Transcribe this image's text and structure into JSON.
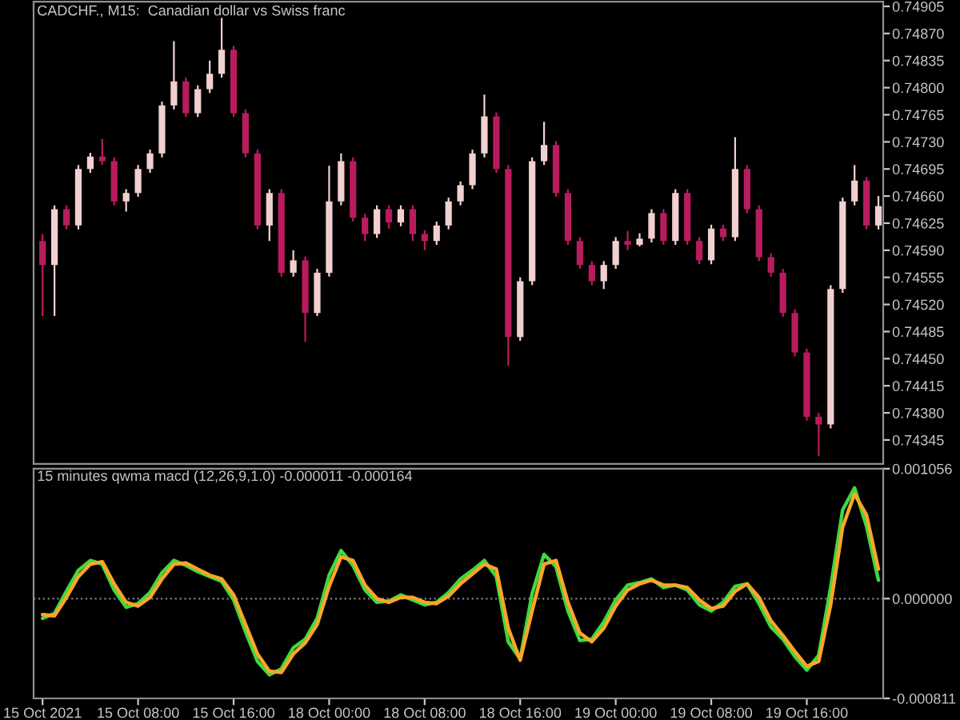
{
  "chart_data": [
    {
      "type": "candlestick",
      "title": "CADCHF., M15:  Canadian dollar vs Swiss franc",
      "categories": [
        null,
        null,
        null,
        null,
        null,
        null,
        null,
        null,
        null,
        null,
        null,
        null,
        null,
        null,
        null,
        null,
        null,
        null,
        null,
        null,
        null,
        null,
        null,
        null,
        null,
        null,
        null,
        null,
        null,
        null,
        null,
        null,
        null,
        null,
        null,
        null,
        null,
        null,
        null,
        null,
        null,
        null,
        null,
        null,
        null,
        null,
        null,
        null,
        null,
        null,
        null,
        null,
        null,
        null,
        null,
        null,
        null,
        null,
        null,
        null,
        null,
        null,
        null,
        null,
        null,
        null,
        null,
        null,
        null,
        null,
        null
      ],
      "ohlc": [
        [
          0.74602,
          0.74611,
          0.74505,
          0.74571
        ],
        [
          0.74571,
          0.74648,
          0.74505,
          0.74643
        ],
        [
          0.74643,
          0.74648,
          0.74617,
          0.74622
        ],
        [
          0.74622,
          0.747,
          0.74617,
          0.74695
        ],
        [
          0.74695,
          0.74716,
          0.7469,
          0.74711
        ],
        [
          0.74711,
          0.74734,
          0.747,
          0.74705
        ],
        [
          0.74705,
          0.7471,
          0.74648,
          0.74653
        ],
        [
          0.74653,
          0.74669,
          0.7464,
          0.74664
        ],
        [
          0.74664,
          0.747,
          0.74659,
          0.74695
        ],
        [
          0.74695,
          0.7472,
          0.7469,
          0.74715
        ],
        [
          0.74715,
          0.74782,
          0.7471,
          0.74777
        ],
        [
          0.74777,
          0.7486,
          0.74772,
          0.74808
        ],
        [
          0.74808,
          0.74813,
          0.74762,
          0.74767
        ],
        [
          0.74767,
          0.74803,
          0.74762,
          0.74798
        ],
        [
          0.74798,
          0.74835,
          0.74793,
          0.74818
        ],
        [
          0.74818,
          0.7489,
          0.74813,
          0.74849
        ],
        [
          0.74849,
          0.74854,
          0.74762,
          0.74767
        ],
        [
          0.74767,
          0.74772,
          0.7471,
          0.74715
        ],
        [
          0.74715,
          0.7472,
          0.74617,
          0.74622
        ],
        [
          0.74622,
          0.74669,
          0.74602,
          0.74664
        ],
        [
          0.74664,
          0.74669,
          0.74556,
          0.74561
        ],
        [
          0.74561,
          0.7459,
          0.74556,
          0.74577
        ],
        [
          0.74577,
          0.74582,
          0.74472,
          0.74509
        ],
        [
          0.74509,
          0.74566,
          0.74505,
          0.74561
        ],
        [
          0.74561,
          0.74699,
          0.74556,
          0.74653
        ],
        [
          0.74653,
          0.74715,
          0.74648,
          0.74705
        ],
        [
          0.74705,
          0.7471,
          0.74627,
          0.74632
        ],
        [
          0.74632,
          0.74637,
          0.74602,
          0.74611
        ],
        [
          0.74611,
          0.74648,
          0.74606,
          0.74643
        ],
        [
          0.74643,
          0.74648,
          0.74618,
          0.74626
        ],
        [
          0.74626,
          0.74648,
          0.74621,
          0.74643
        ],
        [
          0.74643,
          0.74648,
          0.74602,
          0.74611
        ],
        [
          0.74611,
          0.74616,
          0.7459,
          0.74602
        ],
        [
          0.74602,
          0.74627,
          0.74597,
          0.74622
        ],
        [
          0.74622,
          0.74658,
          0.74617,
          0.74653
        ],
        [
          0.74653,
          0.74679,
          0.74648,
          0.74674
        ],
        [
          0.74674,
          0.7472,
          0.74669,
          0.74715
        ],
        [
          0.74715,
          0.74791,
          0.7471,
          0.74763
        ],
        [
          0.74763,
          0.74768,
          0.7469,
          0.74695
        ],
        [
          0.74695,
          0.747,
          0.74441,
          0.74478
        ],
        [
          0.74478,
          0.74555,
          0.74473,
          0.7455
        ],
        [
          0.7455,
          0.7471,
          0.74545,
          0.74705
        ],
        [
          0.74705,
          0.74756,
          0.747,
          0.74726
        ],
        [
          0.74726,
          0.74731,
          0.74659,
          0.74664
        ],
        [
          0.74664,
          0.74669,
          0.74597,
          0.74602
        ],
        [
          0.74602,
          0.74607,
          0.74566,
          0.74571
        ],
        [
          0.74571,
          0.74576,
          0.74545,
          0.7455
        ],
        [
          0.7455,
          0.74576,
          0.7454,
          0.74571
        ],
        [
          0.74571,
          0.74607,
          0.74566,
          0.74602
        ],
        [
          0.74602,
          0.74615,
          0.7459,
          0.74597
        ],
        [
          0.74597,
          0.74612,
          0.74595,
          0.74605
        ],
        [
          0.74605,
          0.74643,
          0.746,
          0.74638
        ],
        [
          0.74638,
          0.74643,
          0.74597,
          0.74602
        ],
        [
          0.74602,
          0.74669,
          0.74597,
          0.74664
        ],
        [
          0.74664,
          0.74669,
          0.74597,
          0.74602
        ],
        [
          0.74602,
          0.74607,
          0.74572,
          0.74577
        ],
        [
          0.74577,
          0.74623,
          0.74572,
          0.74618
        ],
        [
          0.74618,
          0.74623,
          0.74602,
          0.74607
        ],
        [
          0.74607,
          0.74736,
          0.74602,
          0.74695
        ],
        [
          0.74695,
          0.747,
          0.74638,
          0.74643
        ],
        [
          0.74643,
          0.74648,
          0.74576,
          0.74581
        ],
        [
          0.74581,
          0.74586,
          0.74556,
          0.74561
        ],
        [
          0.74561,
          0.74566,
          0.74504,
          0.74509
        ],
        [
          0.74509,
          0.74514,
          0.74453,
          0.74458
        ],
        [
          0.74458,
          0.74463,
          0.7437,
          0.74375
        ],
        [
          0.74375,
          0.7438,
          0.74324,
          0.74365
        ],
        [
          0.74365,
          0.74545,
          0.7436,
          0.7454
        ],
        [
          0.7454,
          0.74658,
          0.74535,
          0.74653
        ],
        [
          0.74653,
          0.747,
          0.74648,
          0.7468
        ],
        [
          0.7468,
          0.74685,
          0.74617,
          0.74622
        ],
        [
          0.74622,
          0.7466,
          0.74617,
          0.74647
        ]
      ],
      "ylim": [
        0.74314,
        0.74911
      ],
      "yticks": [
        {
          "value": 0.74905,
          "label": "0.74905"
        },
        {
          "value": 0.7487,
          "label": "0.74870"
        },
        {
          "value": 0.74835,
          "label": "0.74835"
        },
        {
          "value": 0.748,
          "label": "0.74800"
        },
        {
          "value": 0.74765,
          "label": "0.74765"
        },
        {
          "value": 0.7473,
          "label": "0.74730"
        },
        {
          "value": 0.74695,
          "label": "0.74695"
        },
        {
          "value": 0.7466,
          "label": "0.74660"
        },
        {
          "value": 0.74625,
          "label": "0.74625"
        },
        {
          "value": 0.7459,
          "label": "0.74590"
        },
        {
          "value": 0.74555,
          "label": "0.74555"
        },
        {
          "value": 0.7452,
          "label": "0.74520"
        },
        {
          "value": 0.74485,
          "label": "0.74485"
        },
        {
          "value": 0.7445,
          "label": "0.74450"
        },
        {
          "value": 0.74415,
          "label": "0.74415"
        },
        {
          "value": 0.7438,
          "label": "0.74380"
        },
        {
          "value": 0.74345,
          "label": "0.74345"
        }
      ],
      "tick_labels": "y",
      "grid": false,
      "legend": false
    },
    {
      "type": "line",
      "title": "15 minutes qwma macd (12,26,9,1.0) -0.000011 -0.000164",
      "categories": [
        "15 Oct 2021",
        null,
        null,
        null,
        null,
        null,
        null,
        null,
        "15 Oct 08:00",
        null,
        null,
        null,
        null,
        null,
        null,
        null,
        "15 Oct 16:00",
        null,
        null,
        null,
        null,
        null,
        null,
        null,
        "18 Oct 00:00",
        null,
        null,
        null,
        null,
        null,
        null,
        null,
        "18 Oct 08:00",
        null,
        null,
        null,
        null,
        null,
        null,
        null,
        "18 Oct 16:00",
        null,
        null,
        null,
        null,
        null,
        null,
        null,
        "19 Oct 00:00",
        null,
        null,
        null,
        null,
        null,
        null,
        null,
        "19 Oct 08:00",
        null,
        null,
        null,
        null,
        null,
        null,
        null,
        "19 Oct 16:00",
        null,
        null,
        null,
        null,
        null,
        null
      ],
      "series": [
        {
          "color": "#3fd83f",
          "values": [
            -0.00016,
            -0.00012,
            6e-05,
            0.00023,
            0.00031,
            0.00028,
            7e-05,
            -7e-05,
            -4e-05,
            5e-05,
            0.00021,
            0.00031,
            0.00027,
            0.00022,
            0.00018,
            0.00014,
            -1e-05,
            -0.00027,
            -0.00051,
            -0.00062,
            -0.00057,
            -0.0004,
            -0.00033,
            -0.00016,
            0.00019,
            0.00039,
            0.00027,
            7e-05,
            -3e-05,
            -2e-05,
            3e-05,
            -1e-05,
            -5e-05,
            -3e-05,
            5e-05,
            0.00016,
            0.00023,
            0.00031,
            0.00018,
            -0.00035,
            -0.00049,
            4e-05,
            0.00036,
            0.00026,
            -0.0001,
            -0.00034,
            -0.00033,
            -0.00019,
            -1e-05,
            0.00011,
            0.00013,
            0.00016,
            9e-05,
            0.00011,
            7e-05,
            -5e-05,
            -0.0001,
            -3e-05,
            0.0001,
            0.00012,
            -4e-05,
            -0.00023,
            -0.00033,
            -0.00047,
            -0.00058,
            -0.00046,
            9e-05,
            0.00072,
            0.0009,
            0.00059,
            0.00015
          ]
        },
        {
          "color": "#ffa528",
          "values": [
            -0.00013,
            -0.00014,
            1e-05,
            0.00018,
            0.00028,
            0.0003,
            0.00012,
            -3e-05,
            -6e-05,
            1e-05,
            0.00016,
            0.00028,
            0.00029,
            0.00024,
            0.00019,
            0.00016,
            3e-05,
            -0.00021,
            -0.00045,
            -0.00059,
            -0.0006,
            -0.00045,
            -0.00036,
            -0.00021,
            0.0001,
            0.00034,
            0.00031,
            0.00011,
            0.0,
            -3e-05,
            1e-05,
            1e-05,
            -3e-05,
            -4e-05,
            2e-05,
            0.00012,
            0.0002,
            0.00028,
            0.00024,
            -0.00024,
            -0.0005,
            -0.0001,
            0.00028,
            0.00031,
            -3e-05,
            -0.00028,
            -0.00035,
            -0.00024,
            -6e-05,
            7e-05,
            0.00012,
            0.00015,
            0.00011,
            0.00011,
            9e-05,
            -1e-05,
            -8e-05,
            -6e-05,
            6e-05,
            0.00012,
            1e-05,
            -0.00018,
            -0.0003,
            -0.00043,
            -0.00055,
            -0.00051,
            -5e-05,
            0.00058,
            0.00085,
            0.00068,
            0.00024
          ]
        }
      ],
      "ylim": [
        -0.000811,
        0.001056
      ],
      "yticks": [
        {
          "value": 0.001056,
          "label": "0.001056"
        },
        {
          "value": 0,
          "label": "0.000000"
        },
        {
          "value": -0.000811,
          "label": "-0.000811"
        }
      ],
      "ref_lines": [
        {
          "axis": "y",
          "value": 0,
          "color": "#808080",
          "line_style": "dotted"
        }
      ],
      "grid": false,
      "legend": false,
      "marker": "none"
    }
  ]
}
